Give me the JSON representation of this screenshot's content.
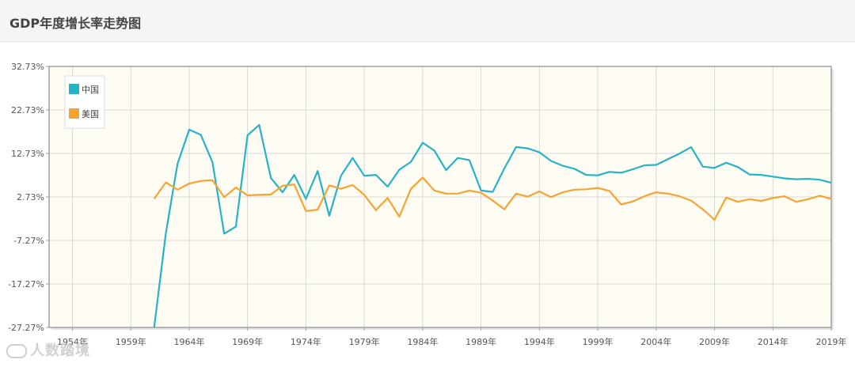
{
  "header": {
    "title": "GDP年度增长率走势图"
  },
  "watermark": {
    "text": "人数踏境"
  },
  "colors": {
    "china": "#26b3c6",
    "usa": "#f5a431",
    "plot_bg": "#fffcf4",
    "grid": "#d8d8d8",
    "axis": "#a0a0a0"
  },
  "chart_data": {
    "type": "line",
    "title": "GDP年度增长率走势图",
    "xlabel": "",
    "ylabel": "",
    "xlim": [
      1952,
      2019
    ],
    "ylim": [
      -27.27,
      32.73
    ],
    "grid": true,
    "legend_position": "top-left",
    "x_ticks": [
      1954,
      1959,
      1964,
      1969,
      1974,
      1979,
      1984,
      1989,
      1994,
      1999,
      2004,
      2009,
      2014,
      2019
    ],
    "x_tick_labels": [
      "1954年",
      "1959年",
      "1964年",
      "1969年",
      "1974年",
      "1979年",
      "1984年",
      "1989年",
      "1994年",
      "1999年",
      "2004年",
      "2009年",
      "2014年",
      "2019年"
    ],
    "y_ticks": [
      32.73,
      22.73,
      12.73,
      2.73,
      -7.27,
      -17.27,
      -27.27
    ],
    "y_tick_labels": [
      "32.73%",
      "22.73%",
      "12.73%",
      "2.73%",
      "-7.27%",
      "-17.27%",
      "-27.27%"
    ],
    "series": [
      {
        "name": "中国",
        "color": "#26b3c6",
        "x": [
          1961,
          1962,
          1963,
          1964,
          1965,
          1966,
          1967,
          1968,
          1969,
          1970,
          1971,
          1972,
          1973,
          1974,
          1975,
          1976,
          1977,
          1978,
          1979,
          1980,
          1981,
          1982,
          1983,
          1984,
          1985,
          1986,
          1987,
          1988,
          1989,
          1990,
          1991,
          1992,
          1993,
          1994,
          1995,
          1996,
          1997,
          1998,
          1999,
          2000,
          2001,
          2002,
          2003,
          2004,
          2005,
          2006,
          2007,
          2008,
          2009,
          2010,
          2011,
          2012,
          2013,
          2014,
          2015,
          2016,
          2017,
          2018,
          2019
        ],
        "y": [
          -27.3,
          -5.6,
          10.3,
          18.2,
          17.0,
          10.7,
          -5.7,
          -4.1,
          16.9,
          19.3,
          7.1,
          3.8,
          7.8,
          2.3,
          8.7,
          -1.6,
          7.6,
          11.7,
          7.6,
          7.8,
          5.1,
          9.0,
          10.8,
          15.2,
          13.4,
          8.9,
          11.7,
          11.2,
          4.2,
          3.9,
          9.3,
          14.2,
          13.9,
          13.0,
          11.0,
          9.9,
          9.2,
          7.8,
          7.7,
          8.5,
          8.3,
          9.1,
          10.0,
          10.1,
          11.4,
          12.7,
          14.2,
          9.7,
          9.4,
          10.6,
          9.6,
          7.9,
          7.8,
          7.4,
          7.0,
          6.8,
          6.9,
          6.7,
          6.0
        ]
      },
      {
        "name": "美国",
        "color": "#f5a431",
        "x": [
          1961,
          1962,
          1963,
          1964,
          1965,
          1966,
          1967,
          1968,
          1969,
          1970,
          1971,
          1972,
          1973,
          1974,
          1975,
          1976,
          1977,
          1978,
          1979,
          1980,
          1981,
          1982,
          1983,
          1984,
          1985,
          1986,
          1987,
          1988,
          1989,
          1990,
          1991,
          1992,
          1993,
          1994,
          1995,
          1996,
          1997,
          1998,
          1999,
          2000,
          2001,
          2002,
          2003,
          2004,
          2005,
          2006,
          2007,
          2008,
          2009,
          2010,
          2011,
          2012,
          2013,
          2014,
          2015,
          2016,
          2017,
          2018,
          2019
        ],
        "y": [
          2.3,
          6.1,
          4.4,
          5.8,
          6.4,
          6.6,
          2.7,
          4.9,
          3.1,
          3.2,
          3.3,
          5.3,
          5.6,
          -0.5,
          -0.2,
          5.4,
          4.6,
          5.5,
          3.2,
          -0.3,
          2.5,
          -1.8,
          4.6,
          7.2,
          4.2,
          3.5,
          3.5,
          4.2,
          3.7,
          1.9,
          -0.1,
          3.5,
          2.8,
          4.0,
          2.7,
          3.8,
          4.4,
          4.5,
          4.8,
          4.1,
          1.0,
          1.7,
          2.9,
          3.8,
          3.5,
          2.9,
          1.9,
          -0.1,
          -2.5,
          2.6,
          1.6,
          2.2,
          1.8,
          2.5,
          2.9,
          1.6,
          2.2,
          3.0,
          2.3
        ]
      }
    ]
  }
}
